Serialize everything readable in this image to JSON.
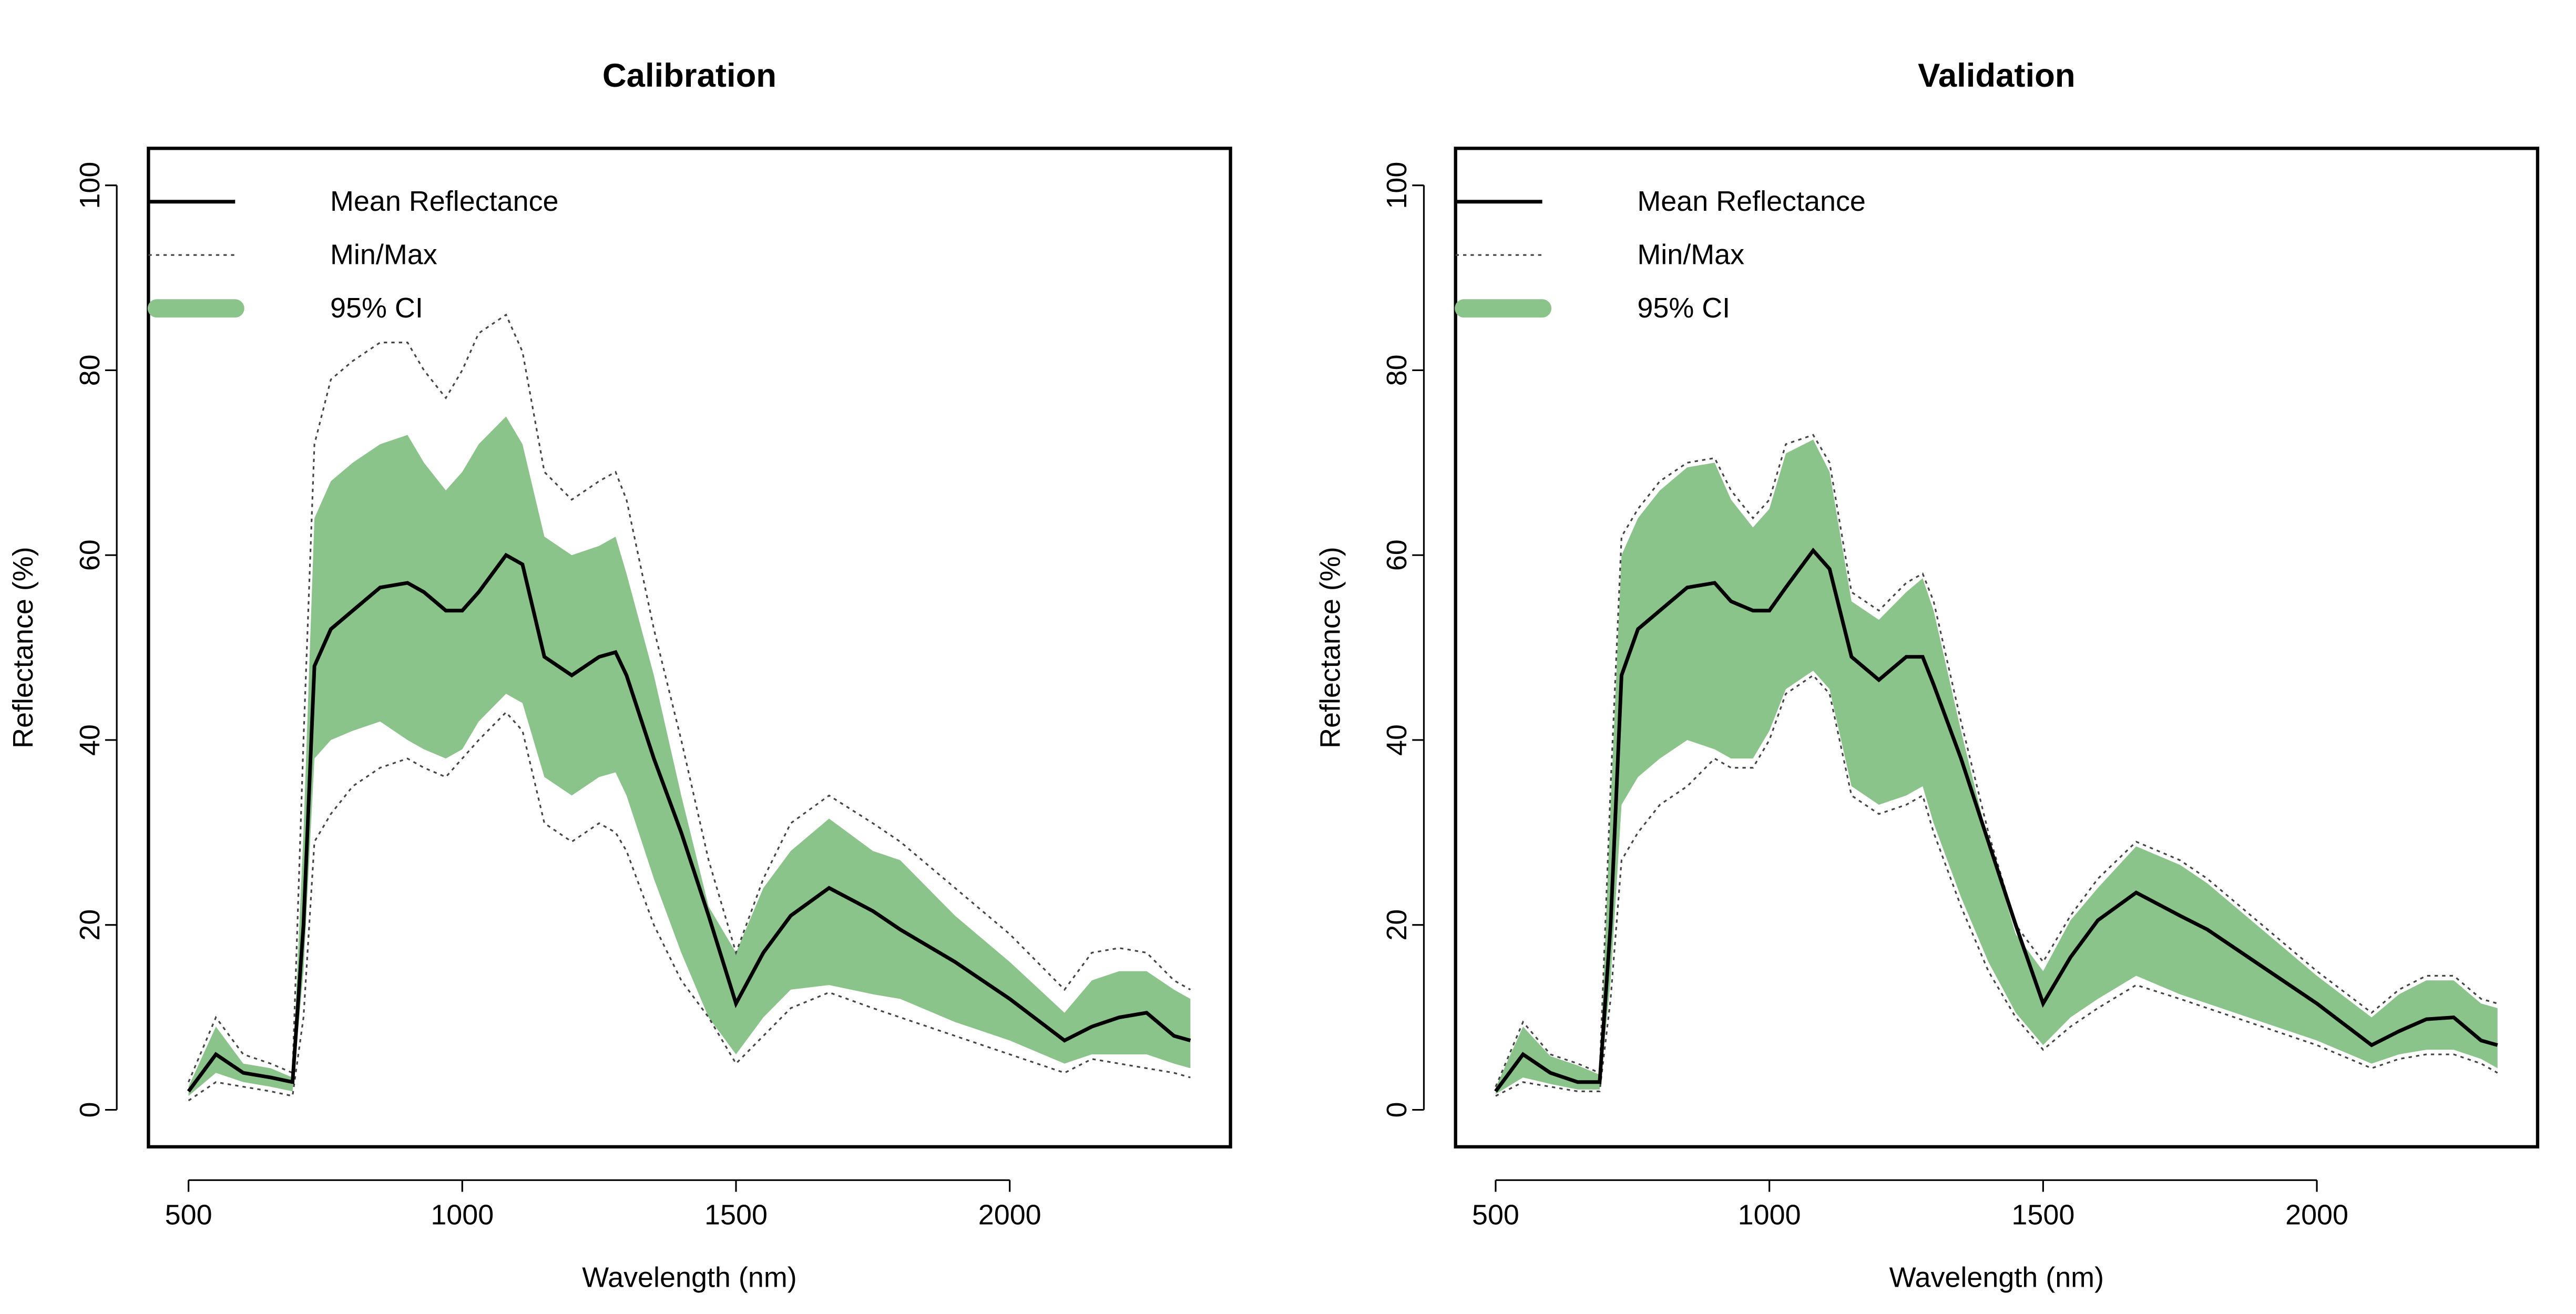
{
  "chart_data": [
    {
      "type": "line",
      "title": "Calibration",
      "xlabel": "Wavelength (nm)",
      "ylabel": "Reflectance (%)",
      "xlim": [
        426.8,
        2403.2
      ],
      "ylim": [
        -4,
        104
      ],
      "xticks": [
        500,
        1000,
        1500,
        2000
      ],
      "yticks": [
        0,
        20,
        40,
        60,
        80,
        100
      ],
      "x": [
        500,
        550,
        600,
        650,
        690,
        710,
        730,
        760,
        800,
        850,
        900,
        930,
        970,
        1000,
        1030,
        1080,
        1110,
        1150,
        1200,
        1250,
        1280,
        1300,
        1350,
        1400,
        1450,
        1500,
        1550,
        1600,
        1670,
        1750,
        1800,
        1900,
        2000,
        2100,
        2150,
        2200,
        2250,
        2300,
        2330
      ],
      "series": [
        {
          "name": "Mean Reflectance",
          "color": "#000000",
          "values": [
            2,
            6,
            4,
            3.5,
            3,
            20,
            48,
            52,
            54,
            56.5,
            57,
            56,
            54,
            54,
            56,
            60,
            59,
            49,
            47,
            49,
            49.5,
            47,
            38,
            30,
            21,
            11.5,
            17,
            21,
            24,
            21.5,
            19.5,
            16,
            12,
            7.5,
            9,
            10,
            10.5,
            8,
            7.5
          ]
        },
        {
          "name": "Min/Max",
          "color": "#444444",
          "lower": [
            1,
            3,
            2.5,
            2,
            1.5,
            10,
            29,
            32,
            35,
            37,
            38,
            37,
            36,
            38,
            40,
            43,
            41,
            31,
            29,
            31,
            30,
            28,
            20,
            14,
            10,
            5,
            8,
            11,
            12.7,
            11,
            10,
            8,
            6,
            4,
            5.5,
            5,
            4.5,
            4,
            3.5
          ],
          "upper": [
            3,
            10,
            6,
            5,
            4,
            40,
            72,
            79,
            81,
            83,
            83,
            80,
            77,
            80,
            84,
            86,
            82,
            69,
            66,
            68,
            69,
            66,
            52,
            40,
            27,
            17,
            25,
            31,
            34,
            31,
            29,
            24,
            19,
            13,
            17,
            17.5,
            17,
            14,
            13
          ]
        },
        {
          "name": "95% CI",
          "color": "#8bc48a",
          "lower": [
            1.5,
            4,
            3,
            2.5,
            2,
            15,
            38,
            40,
            41,
            42,
            40,
            39,
            38,
            39,
            42,
            45,
            44,
            36,
            34,
            36,
            36.5,
            34,
            25,
            17,
            10,
            6,
            10,
            13,
            13.5,
            12.5,
            12,
            9.5,
            7.5,
            5,
            6,
            6,
            6,
            5,
            4.5
          ],
          "upper": [
            2.5,
            9,
            5,
            4.5,
            3.5,
            30,
            64,
            68,
            70,
            72,
            73,
            70,
            67,
            69,
            72,
            75,
            72,
            62,
            60,
            61,
            62,
            58,
            47,
            34,
            22,
            17,
            24,
            28,
            31.5,
            28,
            27,
            21,
            16,
            10.5,
            14,
            15,
            15,
            13,
            12
          ]
        }
      ]
    },
    {
      "type": "line",
      "title": "Validation",
      "xlabel": "Wavelength (nm)",
      "ylabel": "Reflectance (%)",
      "xlim": [
        426.8,
        2403.2
      ],
      "ylim": [
        -4,
        104
      ],
      "xticks": [
        500,
        1000,
        1500,
        2000
      ],
      "yticks": [
        0,
        20,
        40,
        60,
        80,
        100
      ],
      "x": [
        500,
        550,
        600,
        650,
        690,
        710,
        730,
        760,
        800,
        850,
        900,
        930,
        970,
        1000,
        1030,
        1080,
        1110,
        1150,
        1200,
        1250,
        1280,
        1300,
        1350,
        1400,
        1450,
        1500,
        1550,
        1600,
        1670,
        1750,
        1800,
        1900,
        2000,
        2100,
        2150,
        2200,
        2250,
        2300,
        2330
      ],
      "series": [
        {
          "name": "Mean Reflectance",
          "color": "#000000",
          "values": [
            2,
            6,
            4,
            3,
            3,
            20,
            47,
            52,
            54,
            56.5,
            57,
            55,
            54,
            54,
            56.5,
            60.5,
            58.5,
            49,
            46.5,
            49,
            49,
            46,
            38,
            29,
            20,
            11.5,
            16.5,
            20.5,
            23.5,
            21,
            19.5,
            15.5,
            11.5,
            7,
            8.5,
            9.8,
            10,
            7.5,
            7
          ]
        },
        {
          "name": "Min/Max",
          "color": "#444444",
          "lower": [
            1.5,
            3,
            2.5,
            2,
            2,
            12,
            27,
            30,
            33,
            35,
            38,
            37,
            37,
            40,
            45,
            47,
            45,
            34,
            32,
            33,
            34,
            30,
            22,
            15,
            10,
            6.5,
            9,
            11,
            13.5,
            12,
            11,
            9,
            7,
            4.5,
            5.5,
            6,
            6,
            5,
            4
          ],
          "upper": [
            2.5,
            9.5,
            6,
            5,
            4,
            35,
            62,
            65,
            68,
            70,
            70.5,
            67,
            64,
            66,
            72,
            73,
            70,
            56,
            54,
            57,
            58,
            55,
            42,
            30,
            20,
            16,
            21,
            25,
            29,
            27,
            25,
            20,
            15,
            10.5,
            13,
            14.5,
            14.5,
            12,
            11.5
          ]
        },
        {
          "name": "95% CI",
          "color": "#8bc48a",
          "lower": [
            1.7,
            3.5,
            2.8,
            2.2,
            2.2,
            14,
            33,
            36,
            38,
            40,
            39,
            38,
            38,
            41,
            45.5,
            47.5,
            45.5,
            35,
            33,
            34,
            35,
            31,
            23,
            16,
            10.5,
            7,
            10,
            12,
            14.5,
            12.5,
            11.5,
            9.5,
            7.5,
            5,
            6,
            6.5,
            6.5,
            5.5,
            4.5
          ],
          "upper": [
            2.4,
            9,
            5.8,
            4.8,
            3.8,
            33,
            60,
            64,
            67,
            69.5,
            70,
            66,
            63,
            65,
            71,
            72.5,
            69,
            55,
            53,
            56,
            57.5,
            54,
            41,
            29,
            19,
            15,
            20.5,
            24,
            28.5,
            26.5,
            24.5,
            19.5,
            14.5,
            10,
            12.5,
            14,
            14,
            11.5,
            11
          ]
        }
      ]
    }
  ]
}
